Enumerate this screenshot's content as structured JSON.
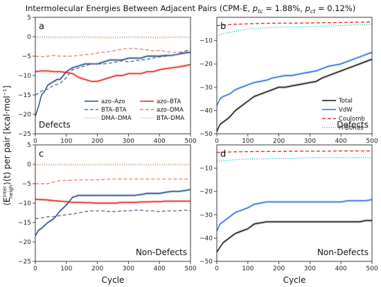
{
  "figure": {
    "title_pre": "Intermolecular Energies Between Adjacent Pairs (CPM-E, ",
    "title_ptc_p": "p",
    "title_ptc_sub": "tc",
    "title_ptc_val": " = 1.88%, ",
    "title_pct_p": "p",
    "title_pct_sub": "ct",
    "title_pct_val": " = 0.12%)",
    "ylabel_main": "⟨E",
    "ylabel_sup": "inter",
    "ylabel_sub": "neigh",
    "ylabel_rest": "⟩(t) per pair  [kcal·mol",
    "ylabel_exp": "−1",
    "ylabel_end": "]",
    "xlabel": "Cycle"
  },
  "chart_data": [
    {
      "panel": "a",
      "type": "line",
      "caption": "Defects",
      "xlim": [
        0,
        500
      ],
      "ylim": [
        -25,
        5
      ],
      "xticks": [
        0,
        100,
        200,
        300,
        400,
        500
      ],
      "yticks": [
        -25,
        -20,
        -15,
        -10,
        -5,
        0,
        5
      ],
      "legend_position": "bottom-left",
      "series": [
        {
          "name": "azo–Azo",
          "color": "#1f4e8c",
          "style": "solid",
          "band": true,
          "x": [
            0,
            10,
            20,
            30,
            40,
            50,
            60,
            70,
            80,
            90,
            100,
            120,
            140,
            160,
            180,
            200,
            220,
            240,
            260,
            280,
            300,
            320,
            340,
            360,
            380,
            400,
            420,
            440,
            460,
            480,
            500
          ],
          "y": [
            -20.5,
            -18,
            -15,
            -14,
            -12.5,
            -12,
            -11.5,
            -11,
            -11,
            -10,
            -9,
            -8,
            -7.5,
            -7,
            -7,
            -7,
            -6.5,
            -6,
            -6,
            -6,
            -5.5,
            -5.5,
            -5.5,
            -5,
            -5,
            -5,
            -4.8,
            -4.8,
            -4.5,
            -4.2,
            -4
          ]
        },
        {
          "name": "azo–BTA",
          "color": "#e8211d",
          "style": "solid",
          "band": true,
          "x": [
            0,
            20,
            40,
            60,
            80,
            100,
            120,
            140,
            160,
            180,
            200,
            220,
            240,
            260,
            280,
            300,
            320,
            340,
            360,
            380,
            400,
            420,
            440,
            460,
            480,
            500
          ],
          "y": [
            -9,
            -8.8,
            -8.8,
            -9,
            -9,
            -9.2,
            -9.5,
            -10.5,
            -11,
            -11.5,
            -11.5,
            -11,
            -10.5,
            -10,
            -10,
            -9.5,
            -9.5,
            -9.5,
            -9,
            -9,
            -8.5,
            -8.2,
            -8,
            -7.8,
            -7.5,
            -7.2
          ]
        },
        {
          "name": "BTA–BTA",
          "color": "#6a6f8f",
          "style": "dashed",
          "band": false,
          "x": [
            0,
            10,
            20,
            40,
            60,
            80,
            100,
            120,
            140,
            160,
            180,
            200,
            220,
            240,
            260,
            280,
            300,
            320,
            340,
            360,
            380,
            400,
            420,
            440,
            460,
            480,
            500
          ],
          "y": [
            -15,
            -14.5,
            -14,
            -13.5,
            -12.5,
            -12,
            -10.5,
            -8.5,
            -8,
            -7.5,
            -7,
            -7,
            -7,
            -6.8,
            -6.5,
            -6.2,
            -6.5,
            -6.2,
            -6,
            -5.8,
            -5.5,
            -5.2,
            -5,
            -4.8,
            -4.5,
            -3.8,
            -3.2
          ]
        },
        {
          "name": "azo–DMA",
          "color": "#f4846c",
          "style": "dashed",
          "band": false,
          "x": [
            0,
            20,
            40,
            60,
            80,
            100,
            120,
            140,
            160,
            180,
            200,
            220,
            240,
            260,
            280,
            300,
            320,
            340,
            360,
            380,
            400,
            420,
            440,
            460,
            480,
            500
          ],
          "y": [
            -5,
            -5.2,
            -5,
            -4.8,
            -5,
            -5,
            -5,
            -4.8,
            -4.6,
            -4.5,
            -4.2,
            -4.0,
            -3.8,
            -3.5,
            -3.2,
            -3.0,
            -3.0,
            -3.2,
            -3.4,
            -3.6,
            -3.5,
            -3.8,
            -4.0,
            -4.0,
            -3.8,
            -3.8
          ]
        },
        {
          "name": "DMA–DMA",
          "color": "#c9a8a8",
          "style": "dotted",
          "band": false,
          "x": [
            0,
            50,
            100,
            150,
            200,
            250,
            300,
            350,
            400,
            450,
            500
          ],
          "y": [
            0,
            0,
            0,
            0,
            0,
            -0.1,
            0,
            0,
            -0.1,
            0,
            0
          ]
        },
        {
          "name": "BTA–DMA",
          "color": "#e7b46a",
          "style": "dotted",
          "band": false,
          "x": [
            0,
            50,
            100,
            150,
            200,
            250,
            300,
            350,
            400,
            450,
            500
          ],
          "y": [
            -0.2,
            -0.3,
            -0.3,
            -0.2,
            -0.3,
            -0.3,
            -0.2,
            -0.3,
            -0.3,
            -0.2,
            -0.3
          ]
        }
      ]
    },
    {
      "panel": "b",
      "type": "line",
      "caption": "Defects",
      "xlim": [
        0,
        500
      ],
      "ylim": [
        -50,
        0
      ],
      "xticks": [
        0,
        100,
        200,
        300,
        400,
        500
      ],
      "yticks": [
        -50,
        -40,
        -30,
        -20,
        -10
      ],
      "legend_position": "bottom-right",
      "series": [
        {
          "name": "Total",
          "color": "#111111",
          "style": "solid",
          "band": true,
          "x": [
            0,
            10,
            20,
            40,
            60,
            80,
            100,
            120,
            140,
            160,
            180,
            200,
            220,
            240,
            260,
            280,
            300,
            320,
            340,
            360,
            380,
            400,
            420,
            440,
            460,
            480,
            500
          ],
          "y": [
            -49,
            -46,
            -45,
            -43,
            -40,
            -38,
            -36,
            -34,
            -33,
            -32,
            -31,
            -30,
            -30,
            -29.5,
            -29,
            -28.5,
            -28,
            -27.5,
            -26,
            -25,
            -24,
            -23,
            -22,
            -21,
            -20,
            -19,
            -18
          ]
        },
        {
          "name": "VdW",
          "color": "#2a6ee0",
          "style": "solid",
          "band": true,
          "x": [
            0,
            10,
            20,
            40,
            60,
            80,
            100,
            120,
            140,
            160,
            180,
            200,
            220,
            240,
            260,
            280,
            300,
            320,
            340,
            360,
            380,
            400,
            420,
            440,
            460,
            480,
            500
          ],
          "y": [
            -38,
            -35,
            -34,
            -33,
            -31,
            -30,
            -29,
            -28,
            -27.5,
            -27,
            -26,
            -25.5,
            -25,
            -25,
            -24.5,
            -24,
            -23.5,
            -23,
            -22,
            -21,
            -20.5,
            -20,
            -19,
            -18,
            -17,
            -16,
            -15
          ]
        },
        {
          "name": "Coulomb",
          "color": "#e8311d",
          "style": "dashed",
          "band": false,
          "x": [
            0,
            50,
            100,
            150,
            200,
            250,
            300,
            350,
            400,
            450,
            500
          ],
          "y": [
            -3.5,
            -3.0,
            -2.8,
            -2.6,
            -2.5,
            -2.5,
            -2.4,
            -2.3,
            -2.2,
            -2.1,
            -2.0
          ]
        },
        {
          "name": "H-Bonds",
          "color": "#22c8c8",
          "style": "dotted",
          "band": false,
          "x": [
            0,
            20,
            40,
            60,
            80,
            100,
            150,
            200,
            250,
            300,
            350,
            400,
            450,
            500
          ],
          "y": [
            -8,
            -7,
            -6.5,
            -6,
            -5.5,
            -5,
            -4.5,
            -4.2,
            -4,
            -4,
            -3.8,
            -3.5,
            -3.2,
            -3
          ]
        }
      ]
    },
    {
      "panel": "c",
      "type": "line",
      "caption": "Non-Defects",
      "xlim": [
        0,
        500
      ],
      "ylim": [
        -25,
        5
      ],
      "xticks": [
        0,
        100,
        200,
        300,
        400,
        500
      ],
      "yticks": [
        -25,
        -20,
        -15,
        -10,
        -5,
        0,
        5
      ],
      "series": [
        {
          "name": "azo–Azo",
          "color": "#1f4e8c",
          "style": "solid",
          "band": true,
          "x": [
            0,
            10,
            20,
            40,
            60,
            80,
            100,
            120,
            140,
            160,
            180,
            200,
            220,
            240,
            260,
            280,
            300,
            320,
            340,
            360,
            380,
            400,
            420,
            440,
            460,
            480,
            500
          ],
          "y": [
            -18.5,
            -17,
            -16.5,
            -15,
            -14,
            -12,
            -10.5,
            -8.5,
            -8,
            -8,
            -8,
            -8,
            -8,
            -8,
            -8,
            -8,
            -8,
            -8,
            -7.8,
            -7.5,
            -7.5,
            -7.5,
            -7.2,
            -7,
            -7,
            -6.8,
            -6.5
          ]
        },
        {
          "name": "azo–BTA",
          "color": "#e8211d",
          "style": "solid",
          "band": true,
          "x": [
            0,
            20,
            40,
            60,
            80,
            100,
            120,
            140,
            160,
            180,
            200,
            220,
            240,
            260,
            280,
            300,
            320,
            340,
            360,
            380,
            400,
            420,
            440,
            460,
            480,
            500
          ],
          "y": [
            -9,
            -9.1,
            -9.2,
            -9.4,
            -9.5,
            -9.6,
            -9.8,
            -9.8,
            -9.9,
            -9.9,
            -10,
            -10,
            -10,
            -10,
            -9.8,
            -9.8,
            -9.8,
            -9.7,
            -9.7,
            -9.6,
            -9.6,
            -9.5,
            -9.5,
            -9.5,
            -9.5,
            -9.5
          ]
        },
        {
          "name": "BTA–BTA",
          "color": "#6a6f8f",
          "style": "dashed",
          "band": false,
          "x": [
            0,
            20,
            40,
            60,
            80,
            100,
            120,
            140,
            160,
            180,
            200,
            220,
            240,
            260,
            280,
            300,
            320,
            340,
            360,
            380,
            400,
            420,
            440,
            460,
            480,
            500
          ],
          "y": [
            -14,
            -13.8,
            -13.5,
            -13.5,
            -13.2,
            -13,
            -12.8,
            -12.5,
            -12.2,
            -12,
            -12,
            -12,
            -12.2,
            -12.2,
            -12,
            -12,
            -11.8,
            -11.8,
            -12,
            -12,
            -12.2,
            -12,
            -12,
            -12,
            -11.8,
            -12
          ]
        },
        {
          "name": "azo–DMA",
          "color": "#f4846c",
          "style": "dashed",
          "band": false,
          "x": [
            0,
            20,
            40,
            60,
            80,
            100,
            150,
            200,
            250,
            300,
            350,
            400,
            450,
            500
          ],
          "y": [
            -5,
            -5,
            -5,
            -4.5,
            -4.2,
            -4.2,
            -4,
            -4,
            -3.8,
            -3.8,
            -3.8,
            -3.8,
            -3.8,
            -3.8
          ]
        },
        {
          "name": "DMA–DMA",
          "color": "#c9a8a8",
          "style": "dotted",
          "band": false,
          "x": [
            0,
            50,
            100,
            150,
            200,
            250,
            300,
            350,
            400,
            450,
            500
          ],
          "y": [
            0,
            0,
            0,
            0,
            0,
            0,
            0,
            0,
            0,
            0,
            0
          ]
        },
        {
          "name": "BTA–DMA",
          "color": "#e7b46a",
          "style": "dotted",
          "band": false,
          "x": [
            0,
            50,
            100,
            150,
            200,
            250,
            300,
            350,
            400,
            450,
            500
          ],
          "y": [
            -0.2,
            -0.2,
            -0.2,
            -0.2,
            -0.2,
            -0.2,
            -0.2,
            -0.2,
            -0.2,
            -0.2,
            -0.2
          ]
        }
      ]
    },
    {
      "panel": "d",
      "type": "line",
      "caption": "Non-Defects",
      "xlim": [
        0,
        500
      ],
      "ylim": [
        -50,
        0
      ],
      "xticks": [
        0,
        100,
        200,
        300,
        400,
        500
      ],
      "yticks": [
        -50,
        -40,
        -30,
        -20,
        -10
      ],
      "series": [
        {
          "name": "Total",
          "color": "#111111",
          "style": "solid",
          "band": true,
          "x": [
            0,
            10,
            20,
            40,
            60,
            80,
            100,
            120,
            140,
            160,
            180,
            200,
            220,
            240,
            260,
            280,
            300,
            320,
            340,
            360,
            380,
            400,
            420,
            440,
            460,
            480,
            500
          ],
          "y": [
            -46,
            -44,
            -42,
            -40,
            -38,
            -37,
            -36,
            -34,
            -33.5,
            -33,
            -33,
            -33,
            -33,
            -33,
            -33,
            -33,
            -33,
            -33,
            -33,
            -33,
            -33,
            -33,
            -33,
            -33,
            -33,
            -32.5,
            -32.5
          ]
        },
        {
          "name": "VdW",
          "color": "#2a6ee0",
          "style": "solid",
          "band": true,
          "x": [
            0,
            10,
            20,
            40,
            60,
            80,
            100,
            120,
            140,
            160,
            180,
            200,
            220,
            240,
            260,
            280,
            300,
            320,
            340,
            360,
            380,
            400,
            420,
            440,
            460,
            480,
            500
          ],
          "y": [
            -37,
            -34,
            -33,
            -31,
            -29,
            -28,
            -27,
            -25.5,
            -25,
            -24.5,
            -24.5,
            -24.5,
            -24.5,
            -24.5,
            -24.5,
            -24.5,
            -24.5,
            -24.5,
            -24.5,
            -24.5,
            -24.5,
            -24.5,
            -24,
            -24,
            -24,
            -24,
            -23.5
          ]
        },
        {
          "name": "Coulomb",
          "color": "#e8311d",
          "style": "dashed",
          "band": false,
          "x": [
            0,
            50,
            100,
            150,
            200,
            250,
            300,
            350,
            400,
            450,
            500
          ],
          "y": [
            -3.2,
            -3.0,
            -2.9,
            -2.8,
            -2.8,
            -2.7,
            -2.7,
            -2.7,
            -2.6,
            -2.6,
            -2.6
          ]
        },
        {
          "name": "H-Bonds",
          "color": "#22c8c8",
          "style": "dotted",
          "band": false,
          "x": [
            0,
            50,
            100,
            150,
            200,
            250,
            300,
            350,
            400,
            450,
            500
          ],
          "y": [
            -7,
            -6.5,
            -6,
            -6,
            -5.8,
            -5.8,
            -5.5,
            -5.5,
            -5.5,
            -5.5,
            -5.5
          ]
        }
      ]
    }
  ]
}
